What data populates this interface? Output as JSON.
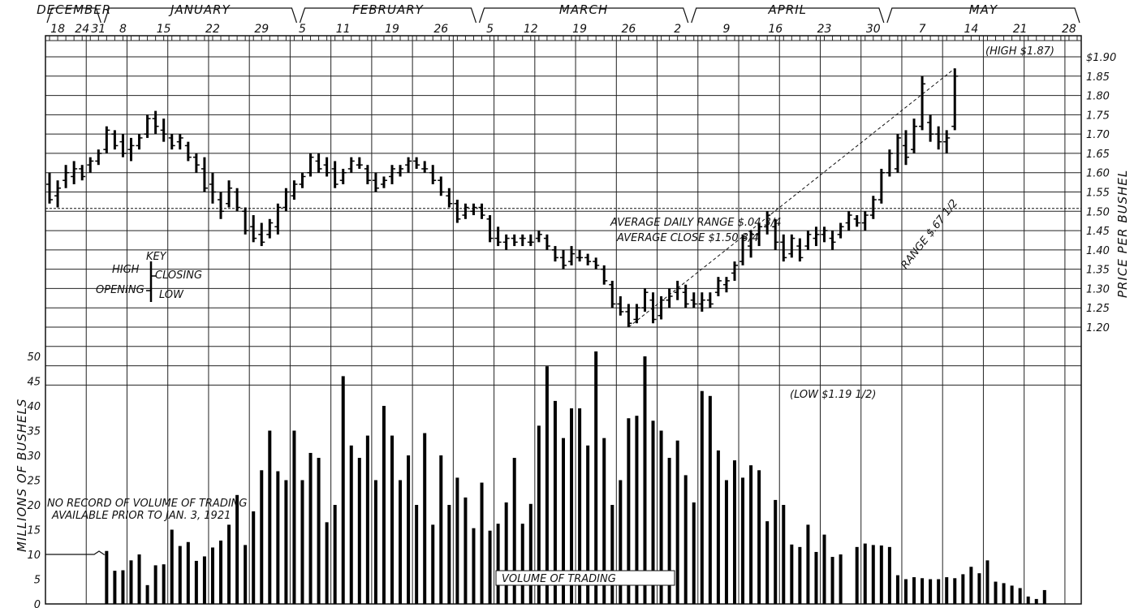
{
  "chart_data": {
    "type": "ohlc+bar",
    "ylabel_price": "PRICE PER BUSHEL",
    "ylabel_volume": "MILLIONS OF BUSHELS",
    "price_ticks": [
      {
        "value": 1.9,
        "label": "$1.90"
      },
      {
        "value": 1.85,
        "label": "1.85"
      },
      {
        "value": 1.8,
        "label": "1.80"
      },
      {
        "value": 1.75,
        "label": "1.75"
      },
      {
        "value": 1.7,
        "label": "1.70"
      },
      {
        "value": 1.65,
        "label": "1.65"
      },
      {
        "value": 1.6,
        "label": "1.60"
      },
      {
        "value": 1.55,
        "label": "1.55"
      },
      {
        "value": 1.5,
        "label": "1.50"
      },
      {
        "value": 1.45,
        "label": "1.45"
      },
      {
        "value": 1.4,
        "label": "1.40"
      },
      {
        "value": 1.35,
        "label": "1.35"
      },
      {
        "value": 1.3,
        "label": "1.30"
      },
      {
        "value": 1.25,
        "label": "1.25"
      },
      {
        "value": 1.2,
        "label": "1.20"
      }
    ],
    "volume_ticks": [
      {
        "value": 50,
        "label": "50"
      },
      {
        "value": 45,
        "label": "45"
      },
      {
        "value": 40,
        "label": "40"
      },
      {
        "value": 35,
        "label": "35"
      },
      {
        "value": 30,
        "label": "30"
      },
      {
        "value": 25,
        "label": "25"
      },
      {
        "value": 20,
        "label": "20"
      },
      {
        "value": 15,
        "label": "15"
      },
      {
        "value": 10,
        "label": "10"
      },
      {
        "value": 5,
        "label": "5"
      },
      {
        "value": 0,
        "label": "0"
      }
    ],
    "months": [
      {
        "name": "DECEMBER",
        "start": 0,
        "end": 7
      },
      {
        "name": "JANUARY",
        "start": 7,
        "end": 31
      },
      {
        "name": "FEBRUARY",
        "start": 31,
        "end": 53
      },
      {
        "name": "MARCH",
        "start": 53,
        "end": 79
      },
      {
        "name": "APRIL",
        "start": 79,
        "end": 103
      },
      {
        "name": "MAY",
        "start": 103,
        "end": 127
      }
    ],
    "day_labels": [
      {
        "label": "18",
        "index": 1
      },
      {
        "label": "24",
        "index": 4
      },
      {
        "label": "31",
        "index": 6
      },
      {
        "label": "8",
        "index": 9
      },
      {
        "label": "15",
        "index": 14
      },
      {
        "label": "22",
        "index": 20
      },
      {
        "label": "29",
        "index": 26
      },
      {
        "label": "5",
        "index": 31
      },
      {
        "label": "11",
        "index": 36
      },
      {
        "label": "19",
        "index": 42
      },
      {
        "label": "26",
        "index": 48
      },
      {
        "label": "5",
        "index": 54
      },
      {
        "label": "12",
        "index": 59
      },
      {
        "label": "19",
        "index": 65
      },
      {
        "label": "26",
        "index": 71
      },
      {
        "label": "2",
        "index": 77
      },
      {
        "label": "9",
        "index": 83
      },
      {
        "label": "16",
        "index": 89
      },
      {
        "label": "23",
        "index": 95
      },
      {
        "label": "30",
        "index": 101
      },
      {
        "label": "7",
        "index": 107
      },
      {
        "label": "14",
        "index": 113
      },
      {
        "label": "21",
        "index": 119
      },
      {
        "label": "28",
        "index": 125
      }
    ],
    "ohlc": [
      {
        "o": 1.57,
        "h": 1.6,
        "l": 1.52,
        "c": 1.53
      },
      {
        "o": 1.54,
        "h": 1.58,
        "l": 1.51,
        "c": 1.56
      },
      {
        "o": 1.58,
        "h": 1.62,
        "l": 1.56,
        "c": 1.6
      },
      {
        "o": 1.59,
        "h": 1.63,
        "l": 1.57,
        "c": 1.61
      },
      {
        "o": 1.61,
        "h": 1.62,
        "l": 1.58,
        "c": 1.59
      },
      {
        "o": 1.62,
        "h": 1.64,
        "l": 1.6,
        "c": 1.63
      },
      {
        "o": 1.63,
        "h": 1.66,
        "l": 1.62,
        "c": 1.65
      },
      {
        "o": 1.66,
        "h": 1.72,
        "l": 1.65,
        "c": 1.71
      },
      {
        "o": 1.7,
        "h": 1.71,
        "l": 1.66,
        "c": 1.67
      },
      {
        "o": 1.68,
        "h": 1.7,
        "l": 1.64,
        "c": 1.65
      },
      {
        "o": 1.66,
        "h": 1.69,
        "l": 1.63,
        "c": 1.67
      },
      {
        "o": 1.67,
        "h": 1.7,
        "l": 1.66,
        "c": 1.69
      },
      {
        "o": 1.7,
        "h": 1.75,
        "l": 1.69,
        "c": 1.74
      },
      {
        "o": 1.74,
        "h": 1.76,
        "l": 1.7,
        "c": 1.72
      },
      {
        "o": 1.71,
        "h": 1.74,
        "l": 1.68,
        "c": 1.7
      },
      {
        "o": 1.69,
        "h": 1.7,
        "l": 1.66,
        "c": 1.67
      },
      {
        "o": 1.68,
        "h": 1.7,
        "l": 1.66,
        "c": 1.69
      },
      {
        "o": 1.67,
        "h": 1.68,
        "l": 1.63,
        "c": 1.64
      },
      {
        "o": 1.64,
        "h": 1.65,
        "l": 1.6,
        "c": 1.62
      },
      {
        "o": 1.61,
        "h": 1.64,
        "l": 1.55,
        "c": 1.56
      },
      {
        "o": 1.57,
        "h": 1.6,
        "l": 1.52,
        "c": 1.55
      },
      {
        "o": 1.53,
        "h": 1.55,
        "l": 1.48,
        "c": 1.5
      },
      {
        "o": 1.52,
        "h": 1.58,
        "l": 1.51,
        "c": 1.56
      },
      {
        "o": 1.55,
        "h": 1.56,
        "l": 1.5,
        "c": 1.51
      },
      {
        "o": 1.5,
        "h": 1.51,
        "l": 1.44,
        "c": 1.45
      },
      {
        "o": 1.46,
        "h": 1.49,
        "l": 1.42,
        "c": 1.43
      },
      {
        "o": 1.44,
        "h": 1.47,
        "l": 1.41,
        "c": 1.42
      },
      {
        "o": 1.44,
        "h": 1.48,
        "l": 1.43,
        "c": 1.47
      },
      {
        "o": 1.46,
        "h": 1.52,
        "l": 1.44,
        "c": 1.51
      },
      {
        "o": 1.51,
        "h": 1.56,
        "l": 1.5,
        "c": 1.55
      },
      {
        "o": 1.54,
        "h": 1.58,
        "l": 1.53,
        "c": 1.57
      },
      {
        "o": 1.57,
        "h": 1.6,
        "l": 1.56,
        "c": 1.59
      },
      {
        "o": 1.6,
        "h": 1.65,
        "l": 1.59,
        "c": 1.64
      },
      {
        "o": 1.63,
        "h": 1.65,
        "l": 1.6,
        "c": 1.61
      },
      {
        "o": 1.62,
        "h": 1.64,
        "l": 1.59,
        "c": 1.6
      },
      {
        "o": 1.61,
        "h": 1.63,
        "l": 1.56,
        "c": 1.57
      },
      {
        "o": 1.58,
        "h": 1.61,
        "l": 1.57,
        "c": 1.6
      },
      {
        "o": 1.61,
        "h": 1.64,
        "l": 1.6,
        "c": 1.63
      },
      {
        "o": 1.62,
        "h": 1.64,
        "l": 1.61,
        "c": 1.62
      },
      {
        "o": 1.61,
        "h": 1.62,
        "l": 1.57,
        "c": 1.58
      },
      {
        "o": 1.58,
        "h": 1.6,
        "l": 1.55,
        "c": 1.56
      },
      {
        "o": 1.57,
        "h": 1.59,
        "l": 1.56,
        "c": 1.58
      },
      {
        "o": 1.59,
        "h": 1.62,
        "l": 1.57,
        "c": 1.61
      },
      {
        "o": 1.6,
        "h": 1.62,
        "l": 1.59,
        "c": 1.61
      },
      {
        "o": 1.62,
        "h": 1.64,
        "l": 1.6,
        "c": 1.63
      },
      {
        "o": 1.63,
        "h": 1.64,
        "l": 1.61,
        "c": 1.62
      },
      {
        "o": 1.61,
        "h": 1.63,
        "l": 1.6,
        "c": 1.61
      },
      {
        "o": 1.6,
        "h": 1.62,
        "l": 1.57,
        "c": 1.58
      },
      {
        "o": 1.58,
        "h": 1.59,
        "l": 1.54,
        "c": 1.55
      },
      {
        "o": 1.54,
        "h": 1.56,
        "l": 1.51,
        "c": 1.52
      },
      {
        "o": 1.52,
        "h": 1.53,
        "l": 1.47,
        "c": 1.48
      },
      {
        "o": 1.49,
        "h": 1.52,
        "l": 1.48,
        "c": 1.51
      },
      {
        "o": 1.5,
        "h": 1.52,
        "l": 1.49,
        "c": 1.51
      },
      {
        "o": 1.51,
        "h": 1.52,
        "l": 1.48,
        "c": 1.49
      },
      {
        "o": 1.48,
        "h": 1.49,
        "l": 1.42,
        "c": 1.43
      },
      {
        "o": 1.43,
        "h": 1.46,
        "l": 1.41,
        "c": 1.42
      },
      {
        "o": 1.42,
        "h": 1.44,
        "l": 1.4,
        "c": 1.43
      },
      {
        "o": 1.43,
        "h": 1.44,
        "l": 1.41,
        "c": 1.42
      },
      {
        "o": 1.43,
        "h": 1.44,
        "l": 1.41,
        "c": 1.43
      },
      {
        "o": 1.42,
        "h": 1.44,
        "l": 1.41,
        "c": 1.42
      },
      {
        "o": 1.43,
        "h": 1.45,
        "l": 1.42,
        "c": 1.44
      },
      {
        "o": 1.43,
        "h": 1.44,
        "l": 1.4,
        "c": 1.41
      },
      {
        "o": 1.4,
        "h": 1.41,
        "l": 1.37,
        "c": 1.38
      },
      {
        "o": 1.38,
        "h": 1.4,
        "l": 1.35,
        "c": 1.36
      },
      {
        "o": 1.37,
        "h": 1.41,
        "l": 1.36,
        "c": 1.39
      },
      {
        "o": 1.38,
        "h": 1.4,
        "l": 1.37,
        "c": 1.38
      },
      {
        "o": 1.38,
        "h": 1.39,
        "l": 1.36,
        "c": 1.37
      },
      {
        "o": 1.37,
        "h": 1.38,
        "l": 1.35,
        "c": 1.36
      },
      {
        "o": 1.35,
        "h": 1.36,
        "l": 1.31,
        "c": 1.32
      },
      {
        "o": 1.31,
        "h": 1.32,
        "l": 1.25,
        "c": 1.26
      },
      {
        "o": 1.26,
        "h": 1.28,
        "l": 1.23,
        "c": 1.24
      },
      {
        "o": 1.24,
        "h": 1.26,
        "l": 1.2,
        "c": 1.21
      },
      {
        "o": 1.22,
        "h": 1.26,
        "l": 1.21,
        "c": 1.25
      },
      {
        "o": 1.25,
        "h": 1.3,
        "l": 1.24,
        "c": 1.29
      },
      {
        "o": 1.27,
        "h": 1.29,
        "l": 1.21,
        "c": 1.22
      },
      {
        "o": 1.23,
        "h": 1.28,
        "l": 1.22,
        "c": 1.27
      },
      {
        "o": 1.27,
        "h": 1.3,
        "l": 1.25,
        "c": 1.28
      },
      {
        "o": 1.29,
        "h": 1.32,
        "l": 1.27,
        "c": 1.3
      },
      {
        "o": 1.29,
        "h": 1.31,
        "l": 1.25,
        "c": 1.26
      },
      {
        "o": 1.27,
        "h": 1.29,
        "l": 1.25,
        "c": 1.26
      },
      {
        "o": 1.26,
        "h": 1.29,
        "l": 1.24,
        "c": 1.27
      },
      {
        "o": 1.27,
        "h": 1.29,
        "l": 1.25,
        "c": 1.26
      },
      {
        "o": 1.29,
        "h": 1.33,
        "l": 1.28,
        "c": 1.32
      },
      {
        "o": 1.31,
        "h": 1.33,
        "l": 1.29,
        "c": 1.32
      },
      {
        "o": 1.34,
        "h": 1.37,
        "l": 1.32,
        "c": 1.36
      },
      {
        "o": 1.37,
        "h": 1.44,
        "l": 1.36,
        "c": 1.43
      },
      {
        "o": 1.41,
        "h": 1.45,
        "l": 1.38,
        "c": 1.44
      },
      {
        "o": 1.44,
        "h": 1.47,
        "l": 1.41,
        "c": 1.46
      },
      {
        "o": 1.46,
        "h": 1.5,
        "l": 1.44,
        "c": 1.49
      },
      {
        "o": 1.46,
        "h": 1.48,
        "l": 1.4,
        "c": 1.42
      },
      {
        "o": 1.42,
        "h": 1.44,
        "l": 1.37,
        "c": 1.38
      },
      {
        "o": 1.39,
        "h": 1.44,
        "l": 1.38,
        "c": 1.43
      },
      {
        "o": 1.41,
        "h": 1.43,
        "l": 1.37,
        "c": 1.38
      },
      {
        "o": 1.41,
        "h": 1.45,
        "l": 1.4,
        "c": 1.44
      },
      {
        "o": 1.43,
        "h": 1.46,
        "l": 1.41,
        "c": 1.44
      },
      {
        "o": 1.44,
        "h": 1.46,
        "l": 1.42,
        "c": 1.45
      },
      {
        "o": 1.43,
        "h": 1.45,
        "l": 1.4,
        "c": 1.42
      },
      {
        "o": 1.44,
        "h": 1.47,
        "l": 1.43,
        "c": 1.46
      },
      {
        "o": 1.47,
        "h": 1.5,
        "l": 1.45,
        "c": 1.49
      },
      {
        "o": 1.48,
        "h": 1.49,
        "l": 1.46,
        "c": 1.47
      },
      {
        "o": 1.47,
        "h": 1.5,
        "l": 1.45,
        "c": 1.49
      },
      {
        "o": 1.49,
        "h": 1.54,
        "l": 1.48,
        "c": 1.53
      },
      {
        "o": 1.53,
        "h": 1.61,
        "l": 1.52,
        "c": 1.6
      },
      {
        "o": 1.6,
        "h": 1.66,
        "l": 1.59,
        "c": 1.65
      },
      {
        "o": 1.61,
        "h": 1.7,
        "l": 1.6,
        "c": 1.69
      },
      {
        "o": 1.67,
        "h": 1.71,
        "l": 1.62,
        "c": 1.64
      },
      {
        "o": 1.66,
        "h": 1.74,
        "l": 1.65,
        "c": 1.72
      },
      {
        "o": 1.72,
        "h": 1.85,
        "l": 1.71,
        "c": 1.83
      },
      {
        "o": 1.73,
        "h": 1.75,
        "l": 1.68,
        "c": 1.7
      },
      {
        "o": 1.7,
        "h": 1.72,
        "l": 1.66,
        "c": 1.68
      },
      {
        "o": 1.68,
        "h": 1.71,
        "l": 1.65,
        "c": 1.69
      },
      {
        "o": 1.72,
        "h": 1.87,
        "l": 1.71,
        "c": 1.85
      }
    ],
    "volume": [
      10.7,
      6.7,
      6.8,
      8.8,
      10,
      3.8,
      7.8,
      8,
      15,
      11.7,
      12.5,
      8.7,
      9.6,
      11.4,
      12.8,
      16,
      22,
      11.9,
      18.7,
      27,
      35,
      26.8,
      25,
      35,
      25,
      30.5,
      29.5,
      16.5,
      20,
      46,
      32,
      29.5,
      34,
      25,
      40,
      34,
      25,
      30,
      20,
      34.5,
      16,
      30,
      20,
      25.5,
      21.5,
      15.3,
      24.5,
      14.8,
      16.2,
      20.5,
      29.5,
      16.2,
      20.2,
      36,
      48,
      41,
      33.5,
      39.5,
      39.5,
      32,
      51,
      33.5,
      20,
      25,
      37.5,
      38,
      50,
      37,
      35,
      29.5,
      33,
      26,
      20.5,
      43,
      42,
      31,
      25,
      29,
      25.5,
      28,
      27,
      16.7,
      21,
      20,
      12,
      11.5,
      16,
      10.5,
      14,
      9.5,
      10,
      0,
      11.5,
      12.2,
      11.9,
      11.8,
      11.5,
      5.8,
      5,
      5.4,
      5.2,
      5,
      5,
      5.4,
      5.2,
      6,
      7.5,
      6.2,
      8.8,
      4.5,
      4.2,
      3.7,
      3.2,
      1.5,
      1,
      2.8
    ],
    "average_close": 1.5075,
    "volume_note_day": 7
  },
  "labels": {
    "key_title": "KEY",
    "key_high": "HIGH",
    "key_closing": "CLOSING",
    "key_opening": "OPENING",
    "key_low": "LOW",
    "avg_range": "AVERAGE DAILY RANGE $.04 3/4",
    "avg_close": "AVERAGE CLOSE $1.50 3/4",
    "range": "RANGE $.67 1/2",
    "high": "(HIGH $1.87)",
    "low": "(LOW $1.19 1/2)",
    "no_record_1": "NO RECORD OF VOLUME OF TRADING",
    "no_record_2": "AVAILABLE PRIOR TO JAN. 3, 1921",
    "volume_label": "VOLUME OF TRADING"
  }
}
